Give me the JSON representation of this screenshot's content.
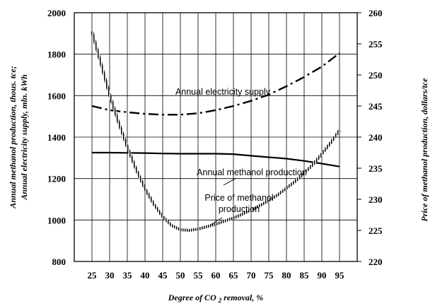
{
  "chart_data": {
    "type": "line",
    "x": [
      25,
      30,
      35,
      40,
      45,
      50,
      55,
      60,
      65,
      70,
      75,
      80,
      85,
      90,
      95
    ],
    "xlim": [
      20,
      100
    ],
    "ylim_left": [
      800,
      2000
    ],
    "ylim_right": [
      220,
      260
    ],
    "x_ticks": [
      "25",
      "30",
      "35",
      "40",
      "45",
      "50",
      "55",
      "60",
      "65",
      "70",
      "75",
      "80",
      "85",
      "90",
      "95"
    ],
    "y_left_ticks": [
      "800",
      "1000",
      "1200",
      "1400",
      "1600",
      "1800",
      "2000"
    ],
    "y_right_ticks": [
      "220",
      "225",
      "230",
      "235",
      "240",
      "245",
      "250",
      "255",
      "260"
    ],
    "xlabel_main": "Degree of CO",
    "xlabel_sub": "2",
    "xlabel_tail": " removal, %",
    "ylabel_left": [
      "Annual methanol production, thous. tce;",
      "Annual electricity supply, mln. kWh"
    ],
    "ylabel_right": "Price of methanol production, dollars/tce",
    "grid": true,
    "series": [
      {
        "name": "Annual electricity supply",
        "axis": "left",
        "style": "dashdot",
        "color": "#000000",
        "x": [
          25,
          30,
          35,
          40,
          45,
          50,
          55,
          60,
          65,
          70,
          75,
          80,
          85,
          90,
          95
        ],
        "values": [
          1550,
          1530,
          1520,
          1512,
          1508,
          1508,
          1515,
          1530,
          1550,
          1575,
          1605,
          1645,
          1690,
          1740,
          1805
        ]
      },
      {
        "name": "Annual methanol production",
        "axis": "left",
        "style": "solid",
        "color": "#000000",
        "x": [
          25,
          30,
          35,
          40,
          45,
          50,
          55,
          60,
          65,
          70,
          75,
          80,
          85,
          90,
          95
        ],
        "values": [
          1325,
          1325,
          1324,
          1323,
          1321,
          1320,
          1320,
          1320,
          1318,
          1310,
          1303,
          1296,
          1285,
          1272,
          1258
        ]
      },
      {
        "name": "Price of methanol production",
        "axis": "right",
        "style": "hatched",
        "color": "#000000",
        "x": [
          25,
          27.5,
          30,
          32.5,
          35,
          37.5,
          40,
          42.5,
          45,
          47.5,
          50,
          52.5,
          55,
          57.5,
          60,
          62.5,
          65,
          67.5,
          70,
          72.5,
          75,
          77.5,
          80,
          82.5,
          85,
          87.5,
          90,
          92.5,
          95
        ],
        "values": [
          257.0,
          251.9,
          246.8,
          242.4,
          238.4,
          234.8,
          231.7,
          229.2,
          227.2,
          225.8,
          225.1,
          225.0,
          225.2,
          225.6,
          226.0,
          226.5,
          227.0,
          227.6,
          228.3,
          229.0,
          229.8,
          230.7,
          231.8,
          232.9,
          234.2,
          235.6,
          237.3,
          239.1,
          241.1
        ]
      }
    ],
    "annotations": [
      {
        "lines": [
          "Annual electricity supply"
        ],
        "series": 0
      },
      {
        "lines": [
          "Annual methanol production"
        ],
        "series": 1
      },
      {
        "lines": [
          "Price of methanol",
          "production"
        ],
        "series": 2
      }
    ]
  }
}
